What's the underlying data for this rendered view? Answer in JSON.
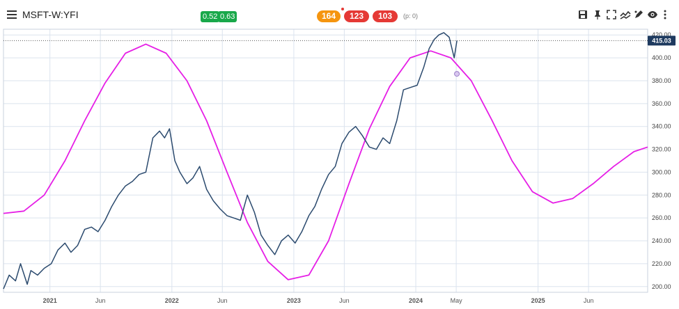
{
  "toolbar": {
    "symbol": "MSFT-W:YFI",
    "badge_left": "0.52",
    "badge_right": "0.63",
    "count_orange": "164",
    "count_red_1": "123",
    "count_red_2": "103",
    "p_label": "(p: 0)",
    "icons": [
      "save-icon",
      "pin-icon",
      "fullscreen-icon",
      "indicator-icon",
      "draw-icon",
      "visibility-icon",
      "more-icon"
    ]
  },
  "colors": {
    "price_line": "#2b4a6e",
    "cycle_line": "#e61ee6",
    "badge_green": "#19a84a",
    "pill_orange": "#f5950f",
    "pill_red": "#e53935",
    "price_tag_bg": "#1e3a5f",
    "grid": "#dbe3ee"
  },
  "chart_data": {
    "type": "line",
    "x_axis_labels": [
      "2021",
      "Jun",
      "2022",
      "Jun",
      "2023",
      "Jun",
      "2024",
      "May",
      "2025",
      "Jun"
    ],
    "y_ticks": [
      "200.00",
      "220.00",
      "240.00",
      "260.00",
      "280.00",
      "300.00",
      "320.00",
      "340.00",
      "360.00",
      "380.00",
      "400.00",
      "420.00"
    ],
    "ylim": [
      195,
      425
    ],
    "xlim": [
      "2020-08-15",
      "2025-11-25"
    ],
    "last_price_label": "415.03",
    "last_price": 415.03,
    "cycle_marker": {
      "date": "2024-05-03",
      "value": 386
    },
    "series": [
      {
        "kind": "price",
        "x": [
          "2020-08-15",
          "2020-09-01",
          "2020-09-20",
          "2020-10-05",
          "2020-10-25",
          "2020-11-05",
          "2020-11-25",
          "2020-12-15",
          "2021-01-05",
          "2021-01-25",
          "2021-02-15",
          "2021-03-05",
          "2021-03-25",
          "2021-04-15",
          "2021-05-05",
          "2021-05-25",
          "2021-06-15",
          "2021-07-05",
          "2021-07-25",
          "2021-08-15",
          "2021-09-05",
          "2021-09-25",
          "2021-10-15",
          "2021-11-05",
          "2021-11-25",
          "2021-12-10",
          "2021-12-25",
          "2022-01-10",
          "2022-01-25",
          "2022-02-15",
          "2022-03-05",
          "2022-03-25",
          "2022-04-15",
          "2022-05-05",
          "2022-05-25",
          "2022-06-15",
          "2022-07-05",
          "2022-07-25",
          "2022-08-15",
          "2022-09-05",
          "2022-09-25",
          "2022-10-15",
          "2022-11-05",
          "2022-11-25",
          "2022-12-15",
          "2023-01-05",
          "2023-01-25",
          "2023-02-15",
          "2023-03-05",
          "2023-03-25",
          "2023-04-15",
          "2023-05-05",
          "2023-05-25",
          "2023-06-15",
          "2023-07-05",
          "2023-07-25",
          "2023-08-15",
          "2023-09-05",
          "2023-09-25",
          "2023-10-15",
          "2023-11-05",
          "2023-11-25",
          "2023-12-15",
          "2024-01-05",
          "2024-01-25",
          "2024-02-10",
          "2024-02-25",
          "2024-03-10",
          "2024-03-25",
          "2024-04-10",
          "2024-04-25",
          "2024-05-03"
        ],
        "y": [
          198,
          210,
          205,
          220,
          202,
          214,
          210,
          216,
          220,
          232,
          238,
          230,
          236,
          250,
          252,
          248,
          258,
          270,
          280,
          288,
          292,
          298,
          300,
          330,
          336,
          330,
          338,
          310,
          300,
          290,
          295,
          305,
          285,
          275,
          268,
          262,
          260,
          258,
          280,
          265,
          245,
          236,
          228,
          240,
          245,
          238,
          248,
          262,
          270,
          285,
          298,
          305,
          325,
          335,
          340,
          332,
          322,
          320,
          330,
          325,
          345,
          372,
          374,
          376,
          392,
          408,
          416,
          420,
          422,
          418,
          400,
          415
        ]
      },
      {
        "kind": "cycle",
        "x": [
          "2020-08-15",
          "2020-10-15",
          "2020-12-15",
          "2021-02-15",
          "2021-04-15",
          "2021-06-15",
          "2021-08-15",
          "2021-10-15",
          "2021-12-15",
          "2022-02-15",
          "2022-04-15",
          "2022-06-15",
          "2022-08-15",
          "2022-10-15",
          "2022-12-15",
          "2023-02-15",
          "2023-04-15",
          "2023-06-15",
          "2023-08-15",
          "2023-10-15",
          "2023-12-15",
          "2024-02-15",
          "2024-04-15",
          "2024-06-15",
          "2024-08-15",
          "2024-10-15",
          "2024-12-15",
          "2025-02-15",
          "2025-04-15",
          "2025-06-15",
          "2025-08-15",
          "2025-10-15",
          "2025-11-25"
        ],
        "y": [
          264,
          266,
          280,
          310,
          345,
          378,
          404,
          412,
          404,
          380,
          345,
          300,
          256,
          222,
          206,
          210,
          240,
          290,
          338,
          375,
          400,
          406,
          400,
          380,
          346,
          310,
          283,
          273,
          277,
          290,
          305,
          318,
          322
        ]
      }
    ]
  }
}
